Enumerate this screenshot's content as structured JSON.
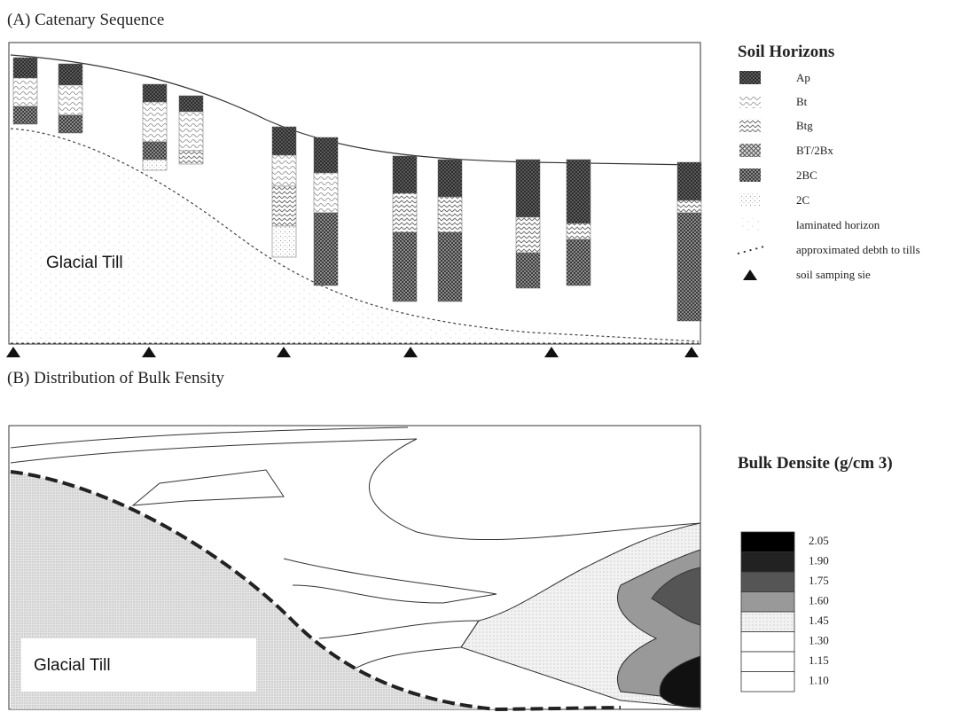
{
  "panel_a": {
    "title": "(A) Catenary Sequence",
    "label": "Glacial Till"
  },
  "legend_a": {
    "title": "Soil Horizons",
    "items": [
      "Ap",
      "Bt",
      "Btg",
      "BT/2Bx",
      "2BC",
      "2C",
      "laminated horizon",
      "approximated debth to tills",
      "soil samping sie"
    ]
  },
  "panel_b": {
    "title": "(B) Distribution of Bulk Fensity",
    "label": "Glacial Till"
  },
  "legend_b": {
    "title": "Bulk Densite (g/cm 3)",
    "levels": [
      "2.05",
      "1.90",
      "1.75",
      "1.60",
      "1.45",
      "1.30",
      "1.15",
      "1.10"
    ]
  }
}
